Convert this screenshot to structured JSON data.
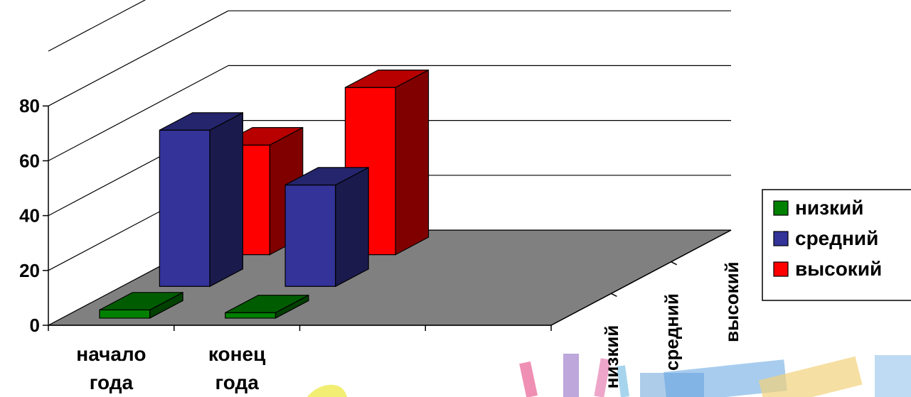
{
  "chart_data": {
    "type": "bar",
    "categories": [
      "начало года",
      "конец года"
    ],
    "category_lines": [
      [
        "начало",
        "года"
      ],
      [
        "конец",
        "года"
      ]
    ],
    "series": [
      {
        "name": "низкий",
        "values": [
          3,
          2
        ],
        "color": "#008000"
      },
      {
        "name": "средний",
        "values": [
          57,
          37
        ],
        "color": "#333399"
      },
      {
        "name": "высокий",
        "values": [
          40,
          61
        ],
        "color": "#ff0000"
      }
    ],
    "depth_labels": [
      "низкий",
      "средний",
      "высокий"
    ],
    "y_ticks": [
      "0",
      "20",
      "40",
      "60",
      "80"
    ],
    "ylim": [
      0,
      100
    ],
    "grid": true,
    "legend_position": "right"
  }
}
